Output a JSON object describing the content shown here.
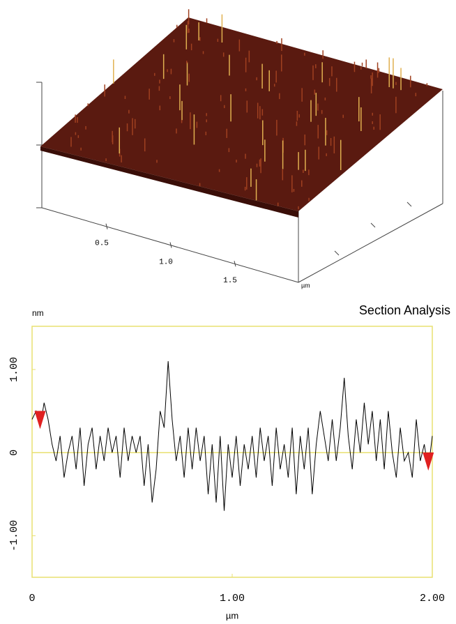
{
  "chart_data": [
    {
      "type": "surface",
      "color": "#5a1a10",
      "xlim": [
        0,
        2
      ],
      "xticks": [
        0.5,
        {
          "value": 1,
          "label": "1.0"
        },
        1.5
      ],
      "x_unit": "µm"
    },
    {
      "type": "line",
      "title": "Section Analysis",
      "y_label": "nm",
      "x_label": "µm",
      "xlim": [
        0,
        2
      ],
      "ylim": [
        -1.5,
        1.52
      ],
      "xticks": [
        0,
        {
          "value": 1,
          "label": "1.00"
        },
        {
          "value": 2,
          "label": "2.00"
        }
      ],
      "yticks": [
        {
          "value": -1,
          "label": "-1.00"
        },
        0,
        {
          "value": 1,
          "label": "1.00"
        }
      ],
      "frame_color": "#e8e070",
      "zero_line": true,
      "cursors": [
        0.04,
        1.98
      ],
      "cursor_color": "#e02020",
      "series": [
        {
          "color": "#000000",
          "x": [
            0,
            0.02,
            0.04,
            0.06,
            0.08,
            0.1,
            0.12,
            0.14,
            0.16,
            0.18,
            0.2,
            0.22,
            0.24,
            0.26,
            0.28,
            0.3,
            0.32,
            0.34,
            0.36,
            0.38,
            0.4,
            0.42,
            0.44,
            0.46,
            0.48,
            0.5,
            0.52,
            0.54,
            0.56,
            0.58,
            0.6,
            0.62,
            0.64,
            0.66,
            0.68,
            0.7,
            0.72,
            0.74,
            0.76,
            0.78,
            0.8,
            0.82,
            0.84,
            0.86,
            0.88,
            0.9,
            0.92,
            0.94,
            0.96,
            0.98,
            1.0,
            1.02,
            1.04,
            1.06,
            1.08,
            1.1,
            1.12,
            1.14,
            1.16,
            1.18,
            1.2,
            1.22,
            1.24,
            1.26,
            1.28,
            1.3,
            1.32,
            1.34,
            1.36,
            1.38,
            1.4,
            1.42,
            1.44,
            1.46,
            1.48,
            1.5,
            1.52,
            1.54,
            1.56,
            1.58,
            1.6,
            1.62,
            1.64,
            1.66,
            1.68,
            1.7,
            1.72,
            1.74,
            1.76,
            1.78,
            1.8,
            1.82,
            1.84,
            1.86,
            1.88,
            1.9,
            1.92,
            1.94,
            1.96,
            1.98,
            2.0
          ],
          "values": [
            0.4,
            0.5,
            0.3,
            0.6,
            0.4,
            0.1,
            -0.1,
            0.2,
            -0.3,
            0.0,
            0.2,
            -0.2,
            0.3,
            -0.4,
            0.1,
            0.3,
            -0.2,
            0.2,
            -0.1,
            0.3,
            0.0,
            0.2,
            -0.3,
            0.3,
            -0.1,
            0.2,
            0.0,
            0.2,
            -0.4,
            0.1,
            -0.6,
            -0.2,
            0.5,
            0.3,
            1.1,
            0.4,
            -0.1,
            0.2,
            -0.3,
            0.3,
            -0.2,
            0.3,
            -0.1,
            0.2,
            -0.5,
            0.1,
            -0.6,
            0.2,
            -0.7,
            0.1,
            -0.3,
            0.2,
            -0.4,
            0.1,
            -0.2,
            0.2,
            -0.3,
            0.3,
            -0.1,
            0.2,
            -0.4,
            0.3,
            -0.2,
            0.1,
            -0.3,
            0.3,
            -0.5,
            0.2,
            -0.2,
            0.3,
            -0.5,
            0.1,
            0.5,
            0.2,
            -0.1,
            0.4,
            -0.1,
            0.3,
            0.9,
            0.2,
            -0.2,
            0.4,
            0.0,
            0.6,
            0.1,
            0.5,
            -0.1,
            0.4,
            -0.2,
            0.5,
            0.0,
            -0.3,
            0.3,
            -0.1,
            0.0,
            -0.3,
            0.4,
            -0.1,
            0.1,
            -0.2,
            0.2
          ]
        }
      ]
    }
  ]
}
